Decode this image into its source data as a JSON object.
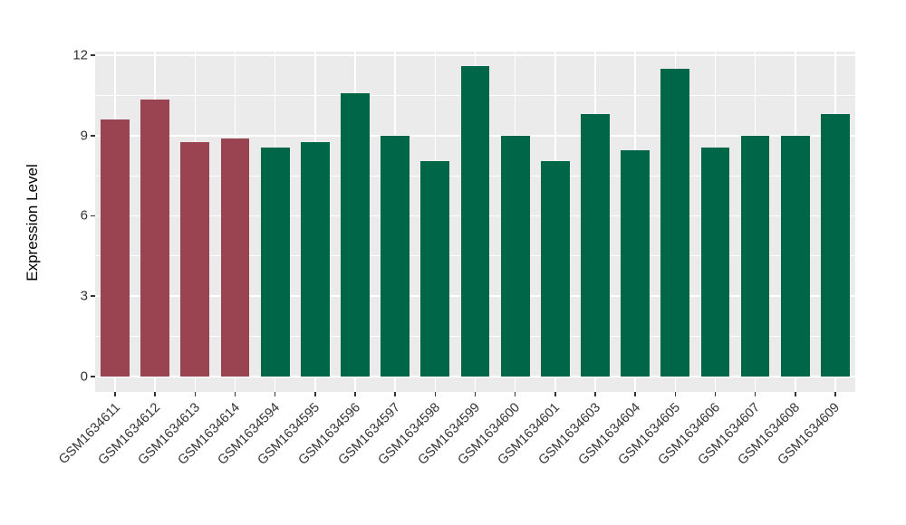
{
  "chart_data": {
    "type": "bar",
    "title": "",
    "ylabel": "Expression Level",
    "xlabel": "",
    "categories": [
      "GSM1634611",
      "GSM1634612",
      "GSM1634613",
      "GSM1634614",
      "GSM1634594",
      "GSM1634595",
      "GSM1634596",
      "GSM1634597",
      "GSM1634598",
      "GSM1634599",
      "GSM1634600",
      "GSM1634601",
      "GSM1634603",
      "GSM1634604",
      "GSM1634605",
      "GSM1634606",
      "GSM1634607",
      "GSM1634608",
      "GSM1634609"
    ],
    "values": [
      9.6,
      10.35,
      8.75,
      8.9,
      8.55,
      8.75,
      10.6,
      9.0,
      8.05,
      11.6,
      9.0,
      8.05,
      9.8,
      8.45,
      11.5,
      8.55,
      9.0,
      9.0,
      9.8
    ],
    "bar_color_keys": [
      "red",
      "red",
      "red",
      "red",
      "green",
      "green",
      "green",
      "green",
      "green",
      "green",
      "green",
      "green",
      "green",
      "green",
      "green",
      "green",
      "green",
      "green",
      "green"
    ],
    "palette": {
      "red": "#9A4451",
      "green": "#006648"
    },
    "yticks": [
      0,
      3,
      6,
      9,
      12
    ],
    "yticks_minor": [
      1.5,
      4.5,
      7.5,
      10.5
    ],
    "ylim": [
      0,
      12
    ],
    "grid": true,
    "legend": "none",
    "panel_bg": "#EBEBEB",
    "grid_color": "#FFFFFF",
    "axis_text_color": "#333333"
  }
}
